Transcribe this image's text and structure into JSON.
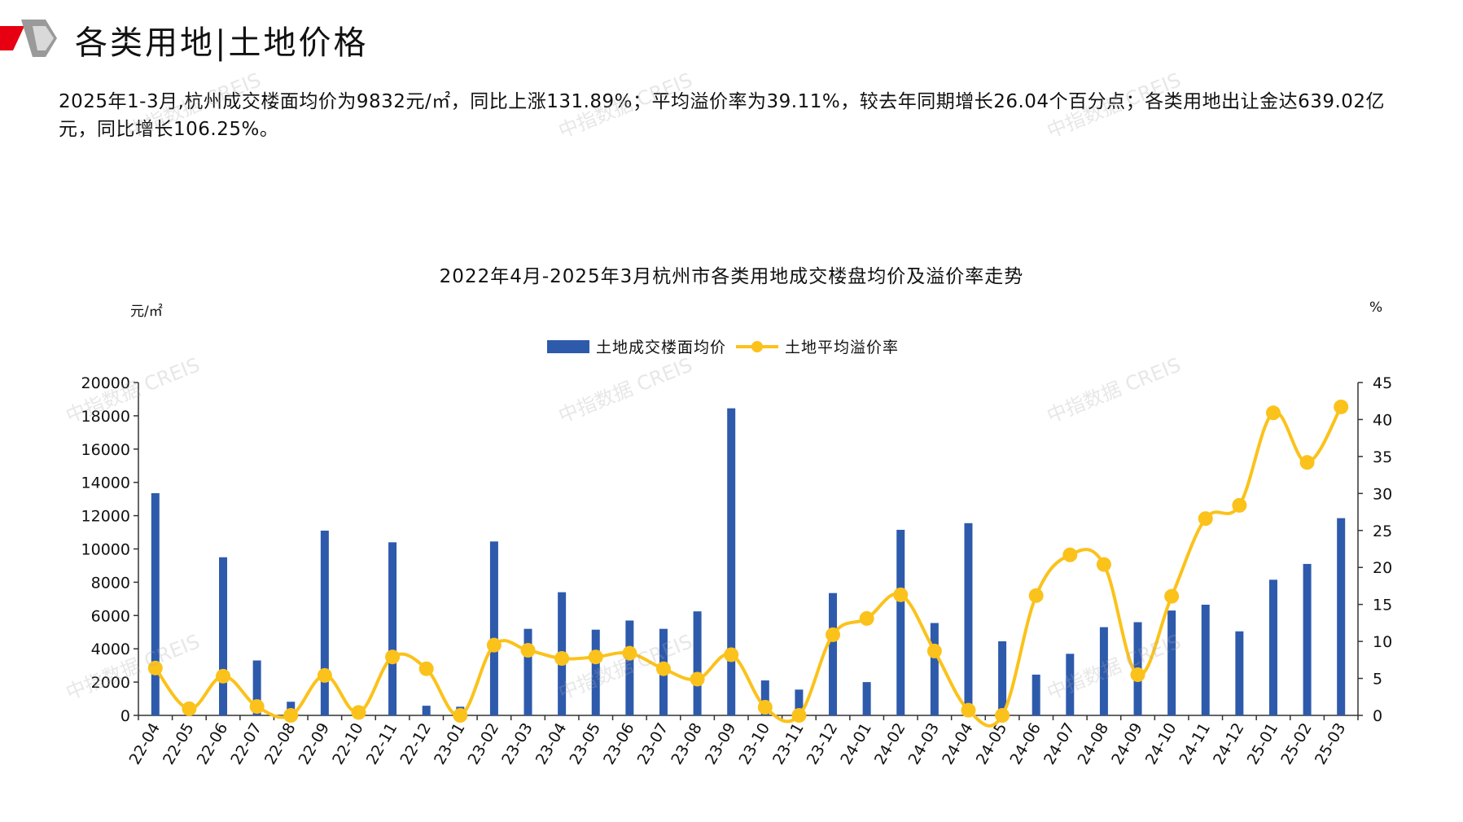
{
  "header": {
    "title": "各类用地|土地价格"
  },
  "summary": "2025年1-3月,杭州成交楼面均价为9832元/㎡，同比上涨131.89%；平均溢价率为39.11%，较去年同期增长26.04个百分点；各类用地出让金达639.02亿元，同比增长106.25%。",
  "watermark": "中指数据 CREIS",
  "colors": {
    "bar": "#2E5AAC",
    "line": "#FBC21B",
    "brand_red": "#E60012"
  },
  "chart_data": {
    "type": "bar+line",
    "title": "2022年4月-2025年3月杭州市各类用地成交楼盘均价及溢价率走势",
    "y_left_unit": "元/㎡",
    "y_right_unit": "%",
    "y_left_ticks": [
      "0",
      "2000",
      "4000",
      "6000",
      "8000",
      "10000",
      "12000",
      "14000",
      "16000",
      "18000",
      "20000"
    ],
    "y_right_ticks": [
      "0",
      "5",
      "10",
      "15",
      "20",
      "25",
      "30",
      "35",
      "40",
      "45"
    ],
    "ylim_left": [
      0,
      20000
    ],
    "ylim_right": [
      0,
      45
    ],
    "legend_position": "top-center",
    "grid": false,
    "categories": [
      "22-04",
      "22-05",
      "22-06",
      "22-07",
      "22-08",
      "22-09",
      "22-10",
      "22-11",
      "22-12",
      "23-01",
      "23-02",
      "23-03",
      "23-04",
      "23-05",
      "23-06",
      "23-07",
      "23-08",
      "23-09",
      "23-10",
      "23-11",
      "23-12",
      "24-01",
      "24-02",
      "24-03",
      "24-04",
      "24-05",
      "24-06",
      "24-07",
      "24-08",
      "24-09",
      "24-10",
      "24-11",
      "24-12",
      "25-01",
      "25-02",
      "25-03"
    ],
    "series": [
      {
        "name": "土地成交楼面均价",
        "type": "bar",
        "axis": "left",
        "values": [
          13350,
          0,
          9500,
          3300,
          820,
          11100,
          0,
          10400,
          580,
          520,
          10450,
          5200,
          7400,
          5150,
          5700,
          5200,
          6250,
          18450,
          2100,
          1550,
          7350,
          2000,
          11150,
          5550,
          11550,
          4450,
          2450,
          3700,
          5300,
          5600,
          6300,
          6650,
          5050,
          8150,
          9100,
          11850
        ]
      },
      {
        "name": "土地平均溢价率",
        "type": "line",
        "axis": "right",
        "values": [
          6.4,
          0.9,
          5.3,
          1.2,
          0.0,
          5.4,
          0.4,
          7.9,
          6.3,
          0.0,
          9.5,
          8.8,
          7.7,
          7.9,
          8.4,
          6.3,
          4.9,
          8.2,
          1.1,
          0.0,
          10.9,
          13.1,
          16.3,
          8.7,
          0.7,
          0.0,
          16.2,
          21.7,
          20.4,
          5.5,
          16.1,
          26.6,
          28.4,
          40.9,
          34.2,
          41.7
        ]
      }
    ]
  }
}
